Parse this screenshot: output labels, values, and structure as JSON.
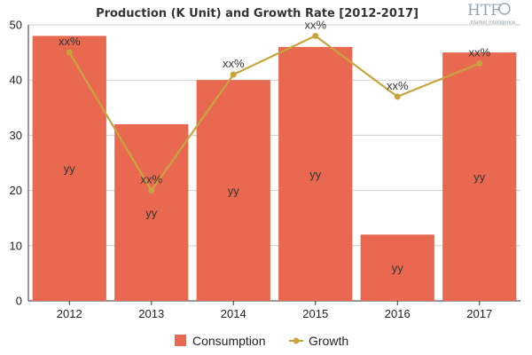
{
  "chart_data": {
    "type": "bar",
    "title": "Production (K Unit) and Growth Rate [2012-2017]",
    "categories": [
      "2012",
      "2013",
      "2014",
      "2015",
      "2016",
      "2017"
    ],
    "series": [
      {
        "name": "Consumption",
        "type": "bar",
        "values": [
          48,
          32,
          40,
          46,
          12,
          45
        ],
        "labels": [
          "yy",
          "yy",
          "yy",
          "yy",
          "yy",
          "yy"
        ],
        "color": "#E8694F"
      },
      {
        "name": "Growth",
        "type": "line",
        "values": [
          45,
          20,
          41,
          48,
          37,
          43
        ],
        "labels": [
          "xx%",
          "xx%",
          "xx%",
          "xx%",
          "xx%",
          "xx%"
        ],
        "color": "#C8A440"
      }
    ],
    "ylim": [
      0,
      50
    ],
    "yticks": [
      0,
      10,
      20,
      30,
      40,
      50
    ],
    "xlabel": "",
    "ylabel": "",
    "grid": true,
    "legend": "bottom-center"
  },
  "watermark": {
    "text": "HTF",
    "subtext": "Market Intelligence"
  }
}
